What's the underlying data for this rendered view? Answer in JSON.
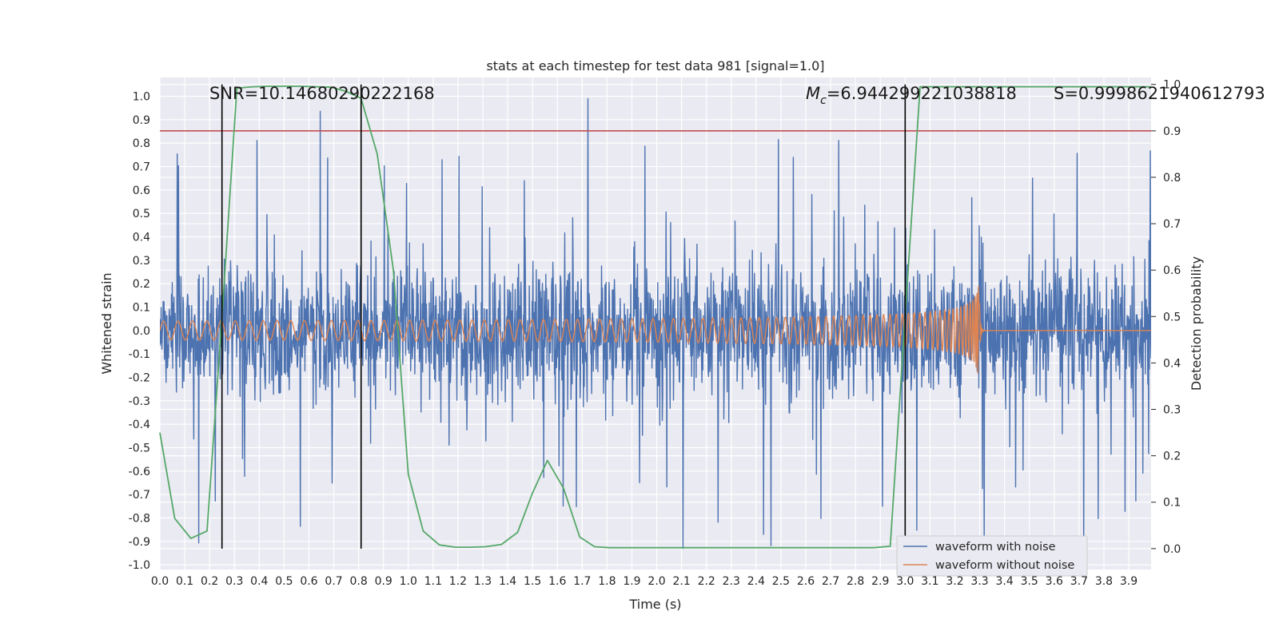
{
  "chart_data": {
    "type": "line",
    "title": "stats at each timestep for test data 981 [signal=1.0]",
    "xlabel": "Time (s)",
    "ylabel": "Whitened strain",
    "y2label": "Detection probability",
    "xlim": [
      0.0,
      3.99
    ],
    "ylim": [
      -1.02,
      1.08
    ],
    "y2lim": [
      -0.045,
      1.015
    ],
    "x_ticks": [
      "0.0",
      "0.1",
      "0.2",
      "0.3",
      "0.4",
      "0.5",
      "0.6",
      "0.7",
      "0.8",
      "0.9",
      "1.0",
      "1.1",
      "1.2",
      "1.3",
      "1.4",
      "1.5",
      "1.6",
      "1.7",
      "1.8",
      "1.9",
      "2.0",
      "2.1",
      "2.2",
      "2.3",
      "2.4",
      "2.5",
      "2.6",
      "2.7",
      "2.8",
      "2.9",
      "3.0",
      "3.1",
      "3.2",
      "3.3",
      "3.4",
      "3.5",
      "3.6",
      "3.7",
      "3.8",
      "3.9"
    ],
    "y_ticks": [
      "-1.0",
      "-0.9",
      "-0.8",
      "-0.7",
      "-0.6",
      "-0.5",
      "-0.4",
      "-0.3",
      "-0.2",
      "-0.1",
      "0.0",
      "0.1",
      "0.2",
      "0.3",
      "0.4",
      "0.5",
      "0.6",
      "0.7",
      "0.8",
      "0.9",
      "1.0"
    ],
    "y2_ticks": [
      "0.0",
      "0.1",
      "0.2",
      "0.3",
      "0.4",
      "0.5",
      "0.6",
      "0.7",
      "0.8",
      "0.9",
      "1.0"
    ],
    "annotations": {
      "snr": "SNR=10.14680290222168",
      "mc_symbol": "M",
      "mc_sub": "c",
      "mc_value": "=6.944299221038818",
      "s": "S=0.9998621940612793"
    },
    "threshold": 0.9,
    "vlines": [
      0.25,
      0.81,
      3.0
    ],
    "legend": {
      "position": "lower-right",
      "entries": [
        "waveform with noise",
        "waveform without noise"
      ]
    },
    "colors": {
      "noise": "#4c72b0",
      "clean": "#dd8452",
      "prob": "#55a868",
      "threshold": "#c44e52",
      "vline": "#000000",
      "bg": "#eaeaf2",
      "grid": "#ffffff"
    },
    "series": [
      {
        "name": "detection probability",
        "axis": "y2",
        "x": [
          0.0,
          0.06,
          0.125,
          0.19,
          0.25,
          0.31,
          0.375,
          0.44,
          0.5,
          0.56,
          0.625,
          0.69,
          0.75,
          0.81,
          0.875,
          0.94,
          1.0,
          1.06,
          1.125,
          1.19,
          1.25,
          1.31,
          1.375,
          1.44,
          1.5,
          1.56,
          1.625,
          1.69,
          1.75,
          1.81,
          1.875,
          1.94,
          2.0,
          2.06,
          2.125,
          2.19,
          2.25,
          2.31,
          2.375,
          2.44,
          2.5,
          2.56,
          2.625,
          2.69,
          2.75,
          2.81,
          2.875,
          2.94,
          3.0,
          3.06,
          3.125,
          3.19,
          3.25,
          3.31,
          3.375,
          3.44,
          3.5,
          3.56,
          3.625,
          3.69,
          3.75,
          3.81,
          3.875,
          3.94,
          3.99
        ],
        "values": [
          0.25,
          0.065,
          0.022,
          0.038,
          0.5,
          0.992,
          0.995,
          0.996,
          0.996,
          0.996,
          0.995,
          0.994,
          0.985,
          0.97,
          0.85,
          0.6,
          0.16,
          0.038,
          0.008,
          0.003,
          0.003,
          0.004,
          0.009,
          0.035,
          0.12,
          0.19,
          0.13,
          0.025,
          0.004,
          0.002,
          0.002,
          0.002,
          0.002,
          0.002,
          0.002,
          0.002,
          0.002,
          0.002,
          0.002,
          0.002,
          0.002,
          0.002,
          0.002,
          0.002,
          0.002,
          0.002,
          0.002,
          0.005,
          0.5,
          0.995,
          0.995,
          0.995,
          0.995,
          0.995,
          0.995,
          0.995,
          0.995,
          0.995,
          0.995,
          0.995,
          0.995,
          0.995,
          0.995,
          0.995,
          0.995
        ]
      }
    ]
  }
}
